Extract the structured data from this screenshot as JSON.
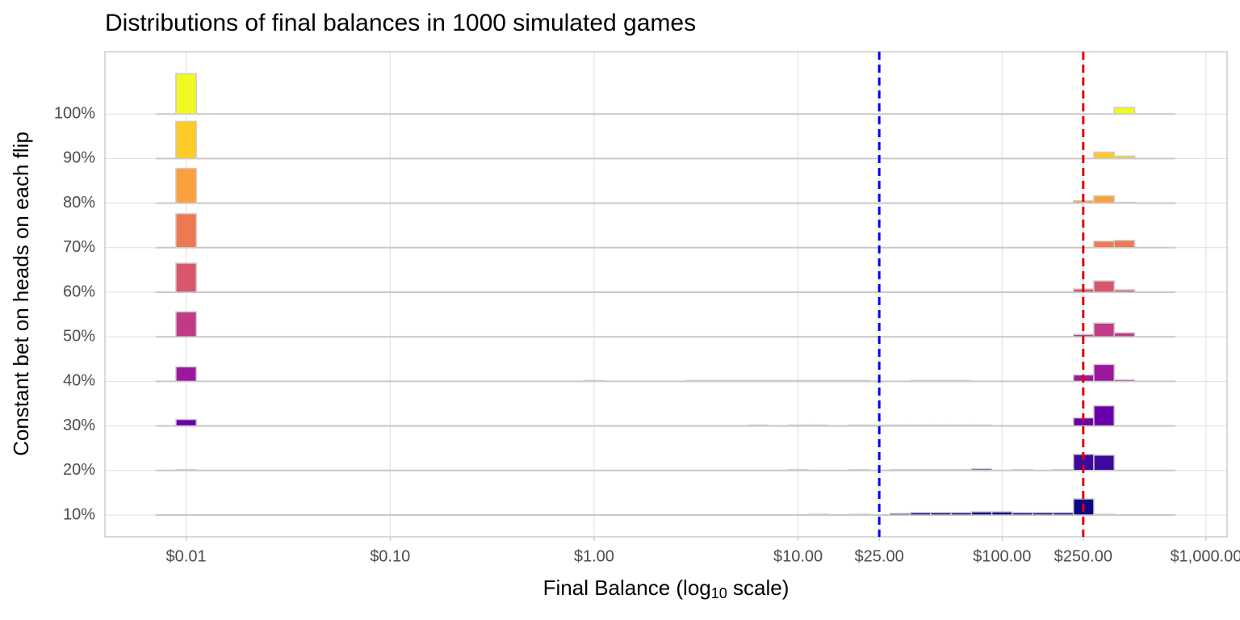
{
  "chart_data": {
    "type": "ridgeline-histogram",
    "title": "Distributions of final balances in 1000 simulated games",
    "xlabel": [
      "Final Balance (log",
      "10",
      " scale)"
    ],
    "ylabel": "Constant bet on heads on each flip",
    "xscale": "log",
    "xlim": [
      0.004,
      1268
    ],
    "xticks": [
      {
        "value": 0.01,
        "label": "$0.01"
      },
      {
        "value": 0.1,
        "label": "$0.10"
      },
      {
        "value": 1,
        "label": "$1.00"
      },
      {
        "value": 10,
        "label": "$10.00"
      },
      {
        "value": 25,
        "label": "$25.00"
      },
      {
        "value": 100,
        "label": "$100.00"
      },
      {
        "value": 250,
        "label": "$250.00"
      },
      {
        "value": 1000,
        "label": "$1,000.00"
      }
    ],
    "grid": true,
    "vlines": [
      {
        "value": 25,
        "color": "#0000ee"
      },
      {
        "value": 250,
        "color": "#e00000"
      }
    ],
    "bins": [
      0.007079,
      0.008913,
      0.01122,
      0.01413,
      0.01778,
      0.02239,
      0.02818,
      0.03548,
      0.04467,
      0.05623,
      0.07079,
      0.08913,
      0.1122,
      0.1413,
      0.1778,
      0.2239,
      0.2818,
      0.3548,
      0.4467,
      0.5623,
      0.7079,
      0.8913,
      1.122,
      1.413,
      1.778,
      2.239,
      2.818,
      3.548,
      4.467,
      5.623,
      7.079,
      8.913,
      11.22,
      14.13,
      17.78,
      22.39,
      28.18,
      35.48,
      44.67,
      56.23,
      70.79,
      89.13,
      112.2,
      141.3,
      177.8,
      223.9,
      281.8,
      354.8,
      446.7,
      562.3,
      707.9
    ],
    "series": [
      {
        "name": "10%",
        "color": "#0d0887",
        "counts": [
          0,
          0,
          0,
          0,
          0,
          0,
          0,
          0,
          0,
          0,
          0,
          0,
          0,
          0,
          0,
          0,
          0,
          0,
          0,
          0,
          0,
          0,
          0,
          0,
          0,
          0,
          0,
          0,
          0,
          0,
          0,
          0,
          18,
          0,
          18,
          0,
          36,
          54,
          54,
          54,
          72,
          72,
          54,
          54,
          54,
          360,
          18,
          0,
          0,
          0
        ]
      },
      {
        "name": "20%",
        "color": "#3e0a9d",
        "counts": [
          0,
          18,
          0,
          0,
          0,
          0,
          0,
          0,
          0,
          0,
          0,
          0,
          0,
          0,
          0,
          0,
          0,
          0,
          0,
          0,
          0,
          0,
          0,
          0,
          0,
          0,
          0,
          0,
          0,
          0,
          0,
          18,
          0,
          0,
          18,
          0,
          18,
          18,
          18,
          18,
          36,
          0,
          18,
          0,
          18,
          360,
          342,
          0,
          0,
          0
        ]
      },
      {
        "name": "30%",
        "color": "#6a00a8",
        "counts": [
          0,
          144,
          0,
          0,
          0,
          0,
          0,
          0,
          0,
          0,
          0,
          0,
          0,
          0,
          0,
          0,
          0,
          0,
          0,
          0,
          0,
          0,
          0,
          0,
          0,
          0,
          0,
          0,
          0,
          18,
          0,
          18,
          18,
          0,
          18,
          18,
          18,
          18,
          18,
          18,
          18,
          0,
          0,
          0,
          0,
          180,
          450,
          0,
          0,
          0
        ]
      },
      {
        "name": "40%",
        "color": "#9c179e",
        "counts": [
          0,
          324,
          0,
          0,
          0,
          0,
          0,
          0,
          0,
          0,
          0,
          0,
          0,
          0,
          0,
          0,
          0,
          0,
          0,
          0,
          0,
          18,
          0,
          0,
          0,
          0,
          18,
          18,
          18,
          18,
          18,
          18,
          18,
          18,
          18,
          0,
          0,
          18,
          18,
          18,
          0,
          0,
          0,
          0,
          0,
          144,
          378,
          36,
          0,
          0
        ]
      },
      {
        "name": "50%",
        "color": "#c13a86",
        "counts": [
          0,
          558,
          0,
          0,
          0,
          0,
          0,
          0,
          0,
          0,
          0,
          0,
          0,
          0,
          0,
          0,
          0,
          0,
          0,
          0,
          0,
          0,
          0,
          0,
          0,
          0,
          0,
          0,
          0,
          0,
          0,
          0,
          0,
          0,
          0,
          0,
          0,
          0,
          0,
          0,
          0,
          0,
          0,
          0,
          0,
          54,
          306,
          90,
          0,
          0
        ]
      },
      {
        "name": "60%",
        "color": "#d8576b",
        "counts": [
          0,
          648,
          0,
          0,
          0,
          0,
          0,
          0,
          0,
          0,
          0,
          0,
          0,
          0,
          0,
          0,
          0,
          0,
          0,
          0,
          0,
          0,
          0,
          0,
          0,
          0,
          0,
          0,
          0,
          0,
          0,
          0,
          0,
          0,
          0,
          0,
          0,
          0,
          0,
          0,
          0,
          0,
          0,
          0,
          0,
          72,
          252,
          54,
          0,
          0
        ]
      },
      {
        "name": "70%",
        "color": "#ed7953",
        "counts": [
          0,
          756,
          0,
          0,
          0,
          0,
          0,
          0,
          0,
          0,
          0,
          0,
          0,
          0,
          0,
          0,
          0,
          0,
          0,
          0,
          0,
          0,
          0,
          0,
          0,
          0,
          0,
          0,
          0,
          0,
          0,
          0,
          0,
          0,
          0,
          0,
          0,
          0,
          0,
          0,
          0,
          0,
          0,
          0,
          0,
          0,
          144,
          162,
          0,
          0
        ]
      },
      {
        "name": "80%",
        "color": "#fba03c",
        "counts": [
          0,
          774,
          0,
          0,
          0,
          0,
          0,
          0,
          0,
          0,
          0,
          0,
          0,
          0,
          0,
          0,
          0,
          0,
          0,
          0,
          0,
          0,
          0,
          0,
          0,
          0,
          0,
          0,
          0,
          0,
          0,
          0,
          0,
          0,
          0,
          0,
          0,
          0,
          0,
          0,
          0,
          0,
          0,
          0,
          0,
          54,
          162,
          18,
          0,
          0
        ]
      },
      {
        "name": "90%",
        "color": "#fdca26",
        "counts": [
          0,
          828,
          0,
          0,
          0,
          0,
          0,
          0,
          0,
          0,
          0,
          0,
          0,
          0,
          0,
          0,
          0,
          0,
          0,
          0,
          0,
          0,
          0,
          0,
          0,
          0,
          0,
          0,
          0,
          0,
          0,
          0,
          0,
          0,
          0,
          0,
          0,
          0,
          0,
          0,
          0,
          0,
          0,
          0,
          0,
          0,
          144,
          54,
          0,
          0
        ]
      },
      {
        "name": "100%",
        "color": "#f0f921",
        "counts": [
          0,
          900,
          0,
          0,
          0,
          0,
          0,
          0,
          0,
          0,
          0,
          0,
          0,
          0,
          0,
          0,
          0,
          0,
          0,
          0,
          0,
          0,
          0,
          0,
          0,
          0,
          0,
          0,
          0,
          0,
          0,
          0,
          0,
          0,
          0,
          0,
          0,
          0,
          0,
          0,
          0,
          0,
          0,
          0,
          0,
          0,
          0,
          144,
          0,
          0
        ]
      }
    ]
  }
}
